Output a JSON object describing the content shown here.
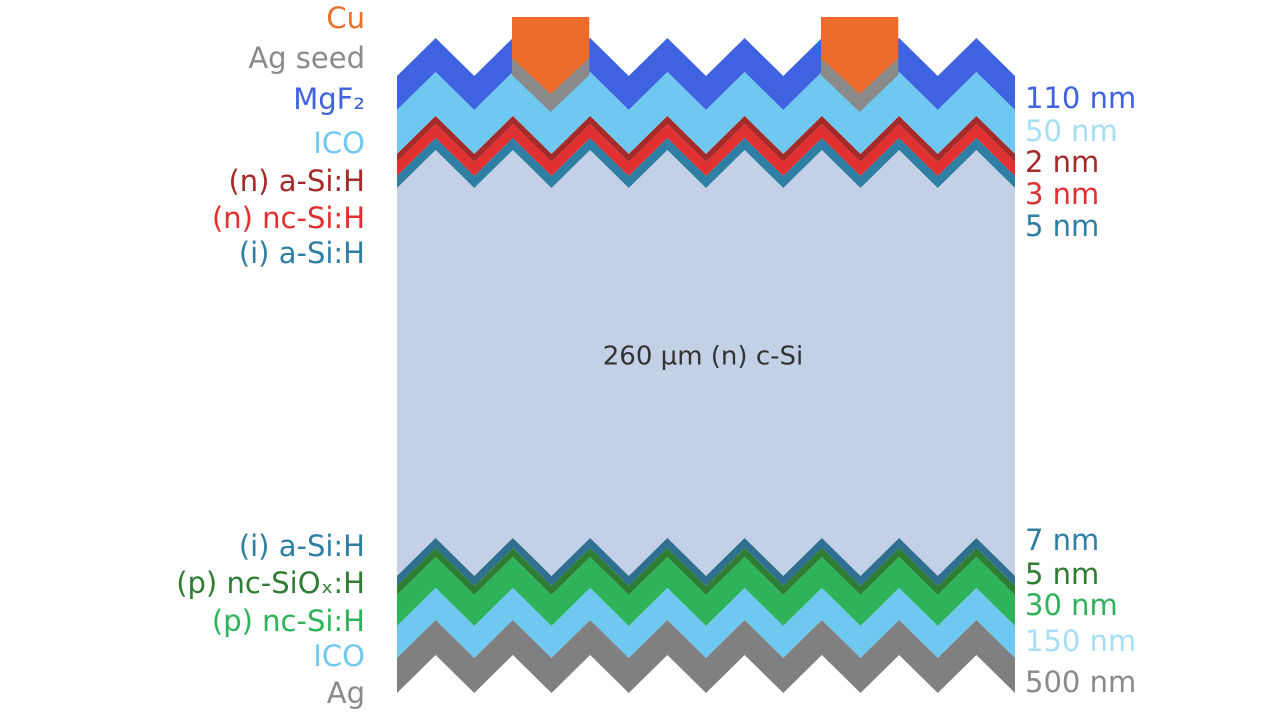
{
  "top_labels": [
    "Cu",
    "Ag seed",
    "MgF₂",
    "ICO",
    "(n) a-Si:H",
    "(n) nc-Si:H",
    "(i) a-Si:H"
  ],
  "top_thicknesses": [
    "110 nm",
    "50 nm",
    "2 nm",
    "3 nm",
    "5 nm"
  ],
  "center_label": "260 µm (n) c-Si",
  "bottom_labels": [
    "(i) a-Si:H",
    "(p) nc-SiOₓ:H",
    "(p) nc-Si:H",
    "ICO",
    "Ag"
  ],
  "bottom_thicknesses": [
    "7 nm",
    "5 nm",
    "30 nm",
    "150 nm",
    "500 nm"
  ]
}
